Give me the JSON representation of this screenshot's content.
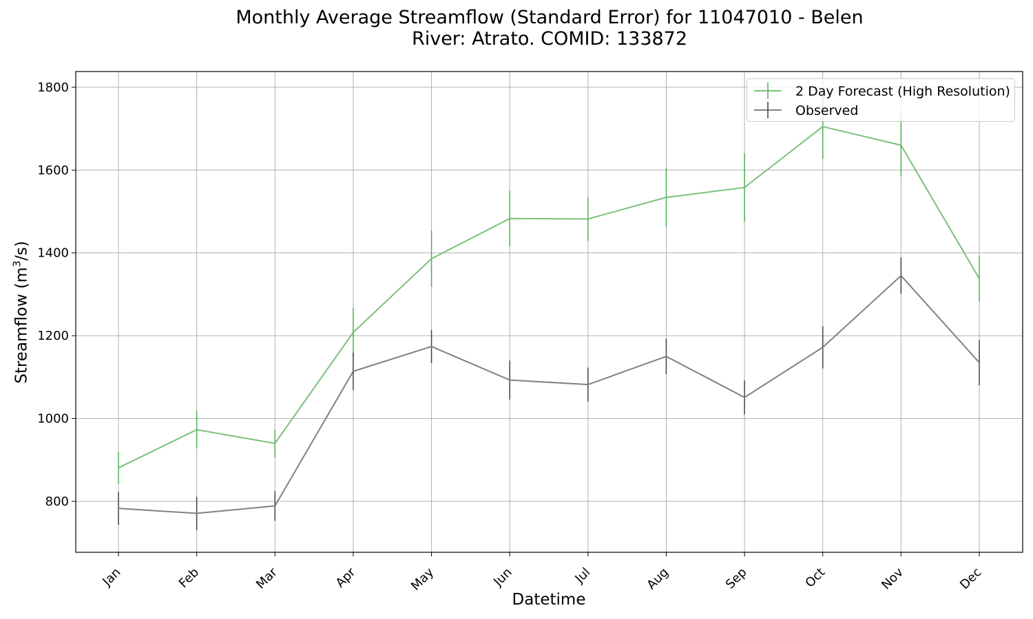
{
  "chart_data": {
    "type": "line",
    "title_lines": [
      "Monthly Average Streamflow (Standard Error) for 11047010 - Belen",
      "River: Atrato. COMID: 133872"
    ],
    "xlabel": "Datetime",
    "ylabel_main": "Streamflow (m",
    "ylabel_sup": "3",
    "ylabel_end": "/s)",
    "categories": [
      "Jan",
      "Feb",
      "Mar",
      "Apr",
      "May",
      "Jun",
      "Jul",
      "Aug",
      "Sep",
      "Oct",
      "Nov",
      "Dec"
    ],
    "ylim": [
      677,
      1838
    ],
    "yticks": [
      800,
      1000,
      1200,
      1400,
      1600,
      1800
    ],
    "grid": true,
    "legend_position": "top-right",
    "series": [
      {
        "name": "2 Day Forecast (High Resolution)",
        "color": "#7bbf7b",
        "error_color": "#4caf50",
        "values": [
          881,
          973,
          940,
          1208,
          1386,
          1483,
          1482,
          1534,
          1558,
          1705,
          1660,
          1338
        ],
        "errors": [
          38,
          45,
          34,
          60,
          68,
          67,
          53,
          71,
          83,
          78,
          75,
          56
        ]
      },
      {
        "name": "Observed",
        "color": "#808080",
        "error_color": "#404040",
        "values": [
          783,
          771,
          789,
          1114,
          1174,
          1093,
          1082,
          1150,
          1051,
          1172,
          1345,
          1135
        ],
        "errors": [
          40,
          40,
          36,
          45,
          40,
          47,
          41,
          43,
          41,
          51,
          44,
          55
        ]
      }
    ]
  }
}
